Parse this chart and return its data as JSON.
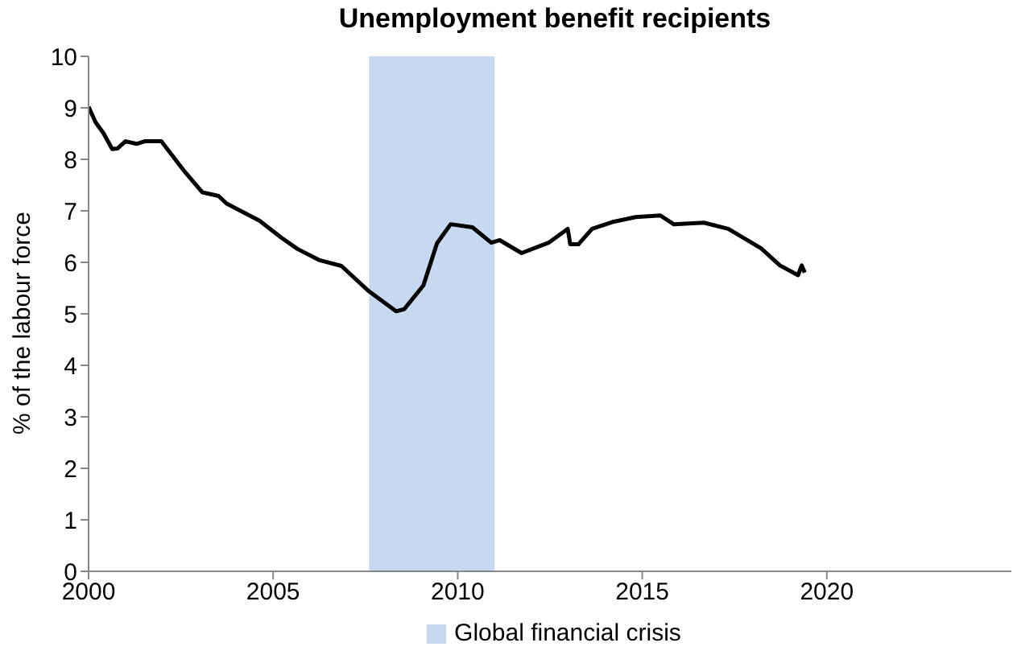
{
  "chart_data": {
    "type": "line",
    "title": "Unemployment benefit recipients",
    "ylabel": "% of the labour force",
    "series": [
      {
        "color": "#000000",
        "x": [
          2000,
          2000.19,
          2000.41,
          2000.64,
          2000.78,
          2001.0,
          2001.3,
          2001.52,
          2001.97,
          2002.56,
          2003.08,
          2003.52,
          2003.74,
          2004.63,
          2005.22,
          2005.66,
          2006.26,
          2006.85,
          2007.59,
          2008.33,
          2008.55,
          2009.07,
          2009.44,
          2009.81,
          2010.4,
          2010.91,
          2011.14,
          2011.73,
          2012.46,
          2012.98,
          2013.05,
          2013.27,
          2013.64,
          2014.23,
          2014.82,
          2015.49,
          2015.85,
          2016.67,
          2017.33,
          2018.22,
          2018.73,
          2019.22,
          2019.32,
          2019.4
        ],
        "values": [
          9.02,
          8.72,
          8.5,
          8.2,
          8.21,
          8.35,
          8.3,
          8.35,
          8.35,
          7.8,
          7.36,
          7.29,
          7.14,
          6.81,
          6.48,
          6.26,
          6.04,
          5.93,
          5.44,
          5.05,
          5.09,
          5.55,
          6.37,
          6.74,
          6.68,
          6.38,
          6.43,
          6.18,
          6.38,
          6.65,
          6.35,
          6.35,
          6.65,
          6.79,
          6.88,
          6.91,
          6.74,
          6.77,
          6.65,
          6.27,
          5.94,
          5.75,
          5.94,
          5.8
        ]
      }
    ],
    "xlim": [
      2000,
      2025
    ],
    "xticks": [
      2000,
      2005,
      2010,
      2015,
      2020
    ],
    "ylim": [
      0,
      10
    ],
    "yticks": [
      0,
      1,
      2,
      3,
      4,
      5,
      6,
      7,
      8,
      9,
      10
    ],
    "bands": [
      {
        "axis": "x",
        "from": 2007.6,
        "to": 2011.0,
        "label": "Global financial crisis",
        "color": "#c6d9f1"
      }
    ],
    "grid": false,
    "legend": "bottom",
    "marker": "none",
    "line_style": "solid"
  }
}
